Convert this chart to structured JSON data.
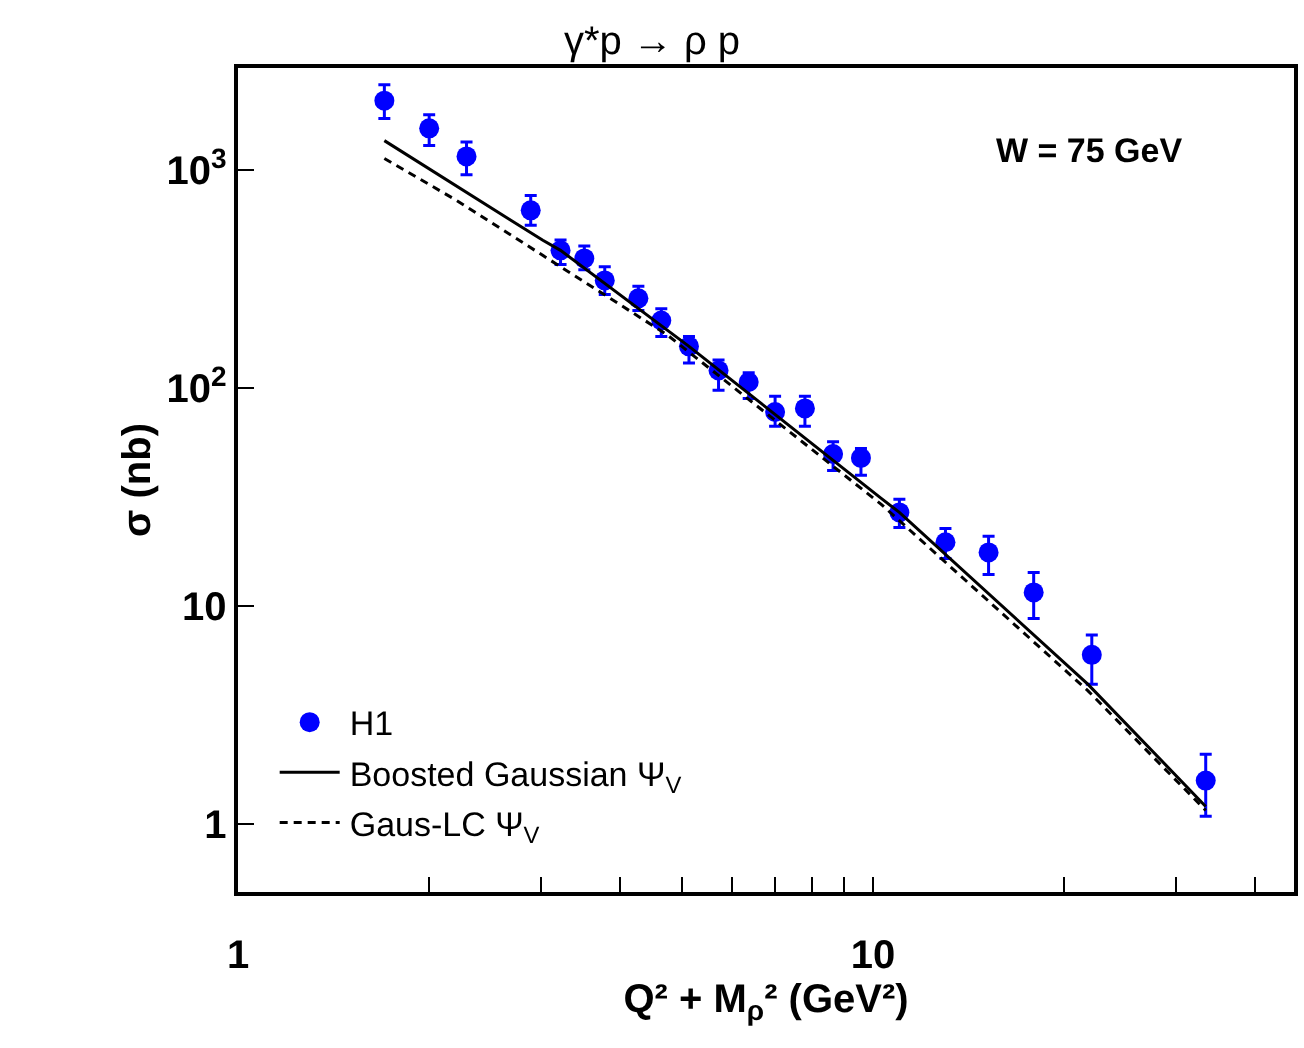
{
  "chart_data": {
    "type": "scatter",
    "title": "γ*p → ρ p",
    "xlabel": "Q² + M$_{ρ}$² (GeV²)",
    "ylabel": "σ (nb)",
    "annotations": [
      "W = 75 GeV"
    ],
    "log": "xy",
    "grid": false,
    "legend": "bottom left",
    "xlim": [
      1,
      46
    ],
    "xticks": [
      1,
      {
        "value": 2,
        "label": null
      },
      {
        "value": 3,
        "label": null
      },
      {
        "value": 4,
        "label": null
      },
      {
        "value": 5,
        "label": null
      },
      {
        "value": 6,
        "label": null
      },
      {
        "value": 7,
        "label": null
      },
      {
        "value": 8,
        "label": null
      },
      {
        "value": 9,
        "label": null
      },
      10,
      {
        "value": 20,
        "label": null
      },
      {
        "value": 30,
        "label": null
      },
      {
        "value": 40,
        "label": null
      }
    ],
    "ylim": [
      0.49,
      2950
    ],
    "yticks": [
      1,
      10,
      {
        "value": 100,
        "label": "10$^{2}$"
      },
      {
        "value": 1000,
        "label": "10$^{3}$"
      }
    ],
    "series": [
      {
        "name": "H1",
        "marker": "circle",
        "color": "#0000ff",
        "x": [
          1.7,
          2.0,
          2.29,
          2.89,
          3.22,
          3.51,
          3.78,
          4.27,
          4.64,
          5.13,
          5.71,
          6.37,
          7.01,
          7.81,
          8.65,
          9.57,
          11.0,
          13.0,
          15.2,
          17.9,
          22.1,
          33.4
        ],
        "values": [
          2090,
          1560,
          1160,
          656,
          430,
          395,
          313,
          259,
          205,
          156,
          121,
          107,
          78,
          81,
          50,
          48,
          27,
          19.7,
          17.7,
          11.6,
          6.0,
          1.59
        ],
        "errors": [
          [
            1730,
            2470
          ],
          [
            1300,
            1800
          ],
          [
            955,
            1350
          ],
          [
            560,
            767
          ],
          [
            370,
            480
          ],
          [
            350,
            450
          ],
          [
            270,
            362
          ],
          [
            228,
            294
          ],
          [
            173,
            232
          ],
          [
            131,
            173
          ],
          [
            98,
            135
          ],
          [
            90,
            118
          ],
          [
            67,
            92
          ],
          [
            67,
            92
          ],
          [
            42,
            57
          ],
          [
            40,
            53
          ],
          [
            23,
            31
          ],
          [
            16.6,
            22.8
          ],
          [
            14,
            21
          ],
          [
            8.8,
            14.3
          ],
          [
            4.4,
            7.4
          ],
          [
            1.09,
            2.1
          ]
        ]
      },
      {
        "name": "Boosted Gaussian Ψ$_{V}$",
        "type": "line",
        "line_style": "solid",
        "color": "#000000",
        "x": [
          1.7,
          3.02,
          3.22,
          5.13,
          10.3,
          11.0,
          21.8,
          33.4
        ],
        "values": [
          1370,
          478,
          430,
          156,
          31.3,
          27,
          4.39,
          1.21
        ]
      },
      {
        "name": "Gaus-LC Ψ$_{V}$",
        "type": "line",
        "line_style": "dashed",
        "color": "#000000",
        "x": [
          1.7,
          2.21,
          4.73,
          10.3,
          21.8,
          33.4
        ],
        "values": [
          1135,
          728,
          177,
          29.4,
          4.1,
          1.16
        ]
      }
    ]
  }
}
